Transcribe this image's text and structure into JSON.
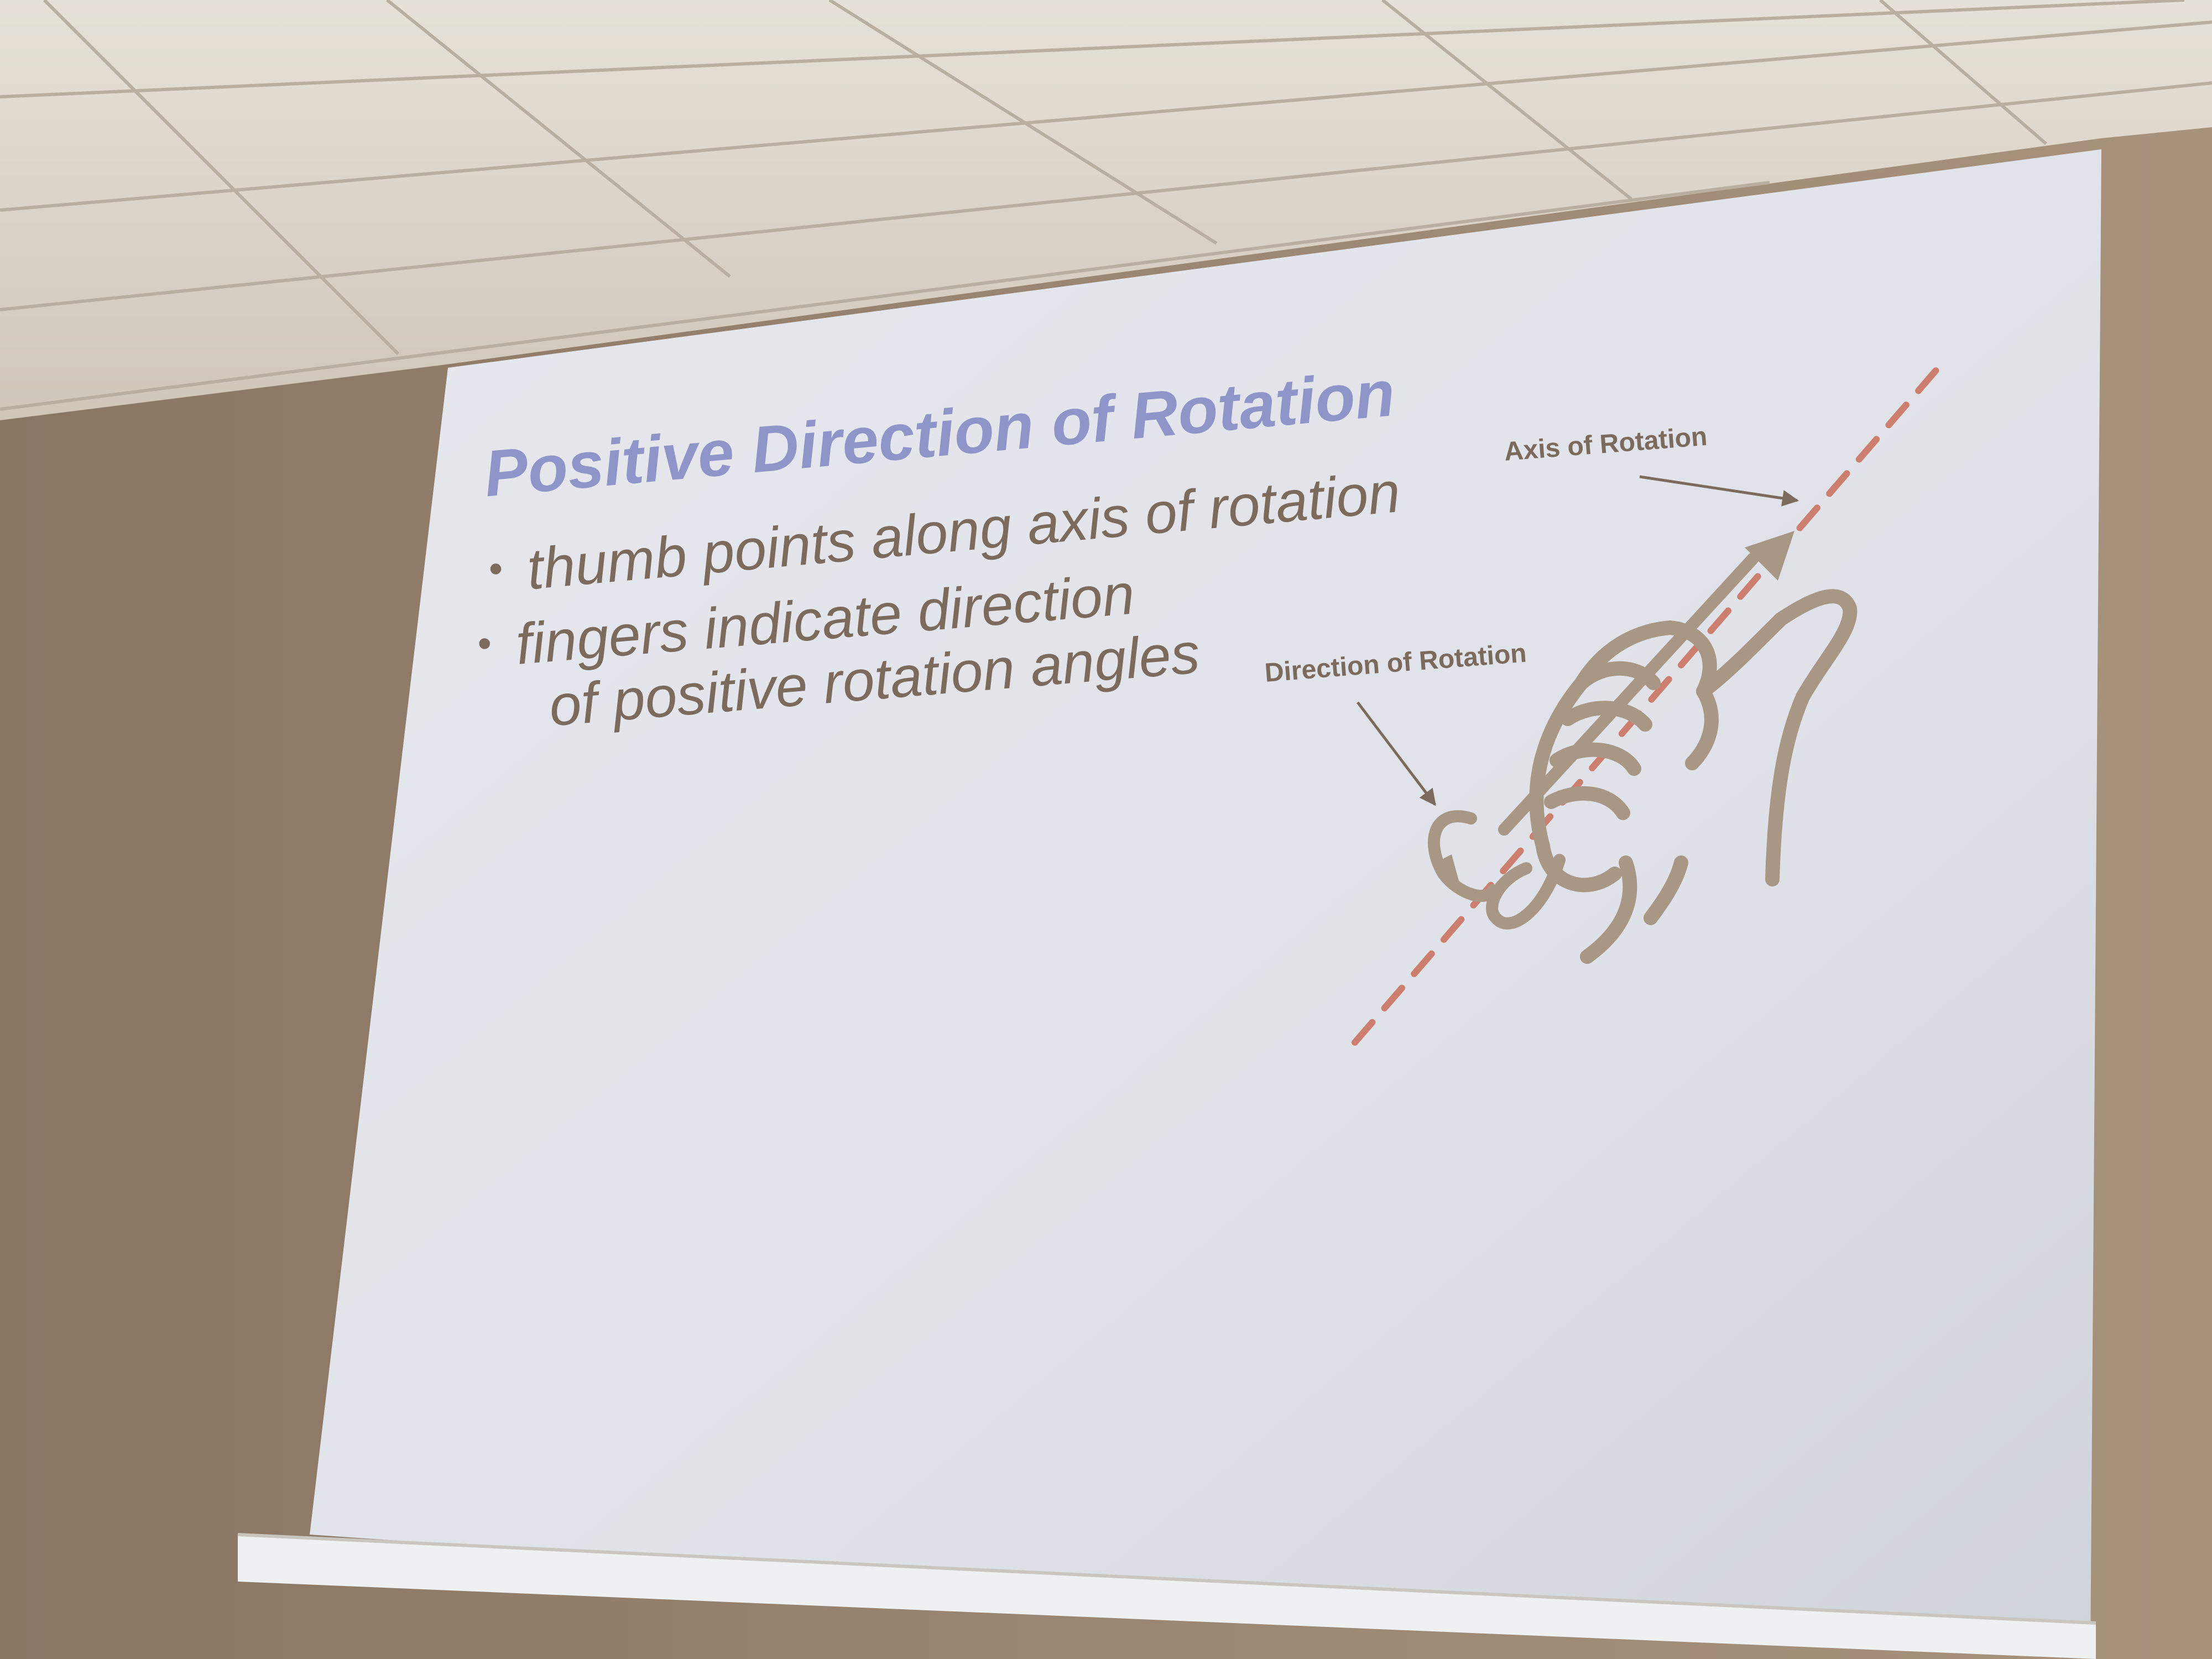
{
  "slide": {
    "title": "Positive Direction of Rotation",
    "bullets": [
      {
        "lines": [
          "thumb points along axis of rotation"
        ]
      },
      {
        "lines": [
          "fingers indicate direction",
          "of positive rotation angles"
        ]
      }
    ]
  },
  "diagram": {
    "axis_label": "Axis of Rotation",
    "direction_label": "Direction of Rotation",
    "hand_icon": "right-hand-rule-icon"
  },
  "colors": {
    "wall": "#8d7a68",
    "ceiling": "#d8d2c8",
    "screen": "#e4e6ea",
    "title": "#8f95c8",
    "body_text": "#7c6a5c",
    "axis_dashes": "#cc7f6f",
    "hand": "#a89784"
  }
}
